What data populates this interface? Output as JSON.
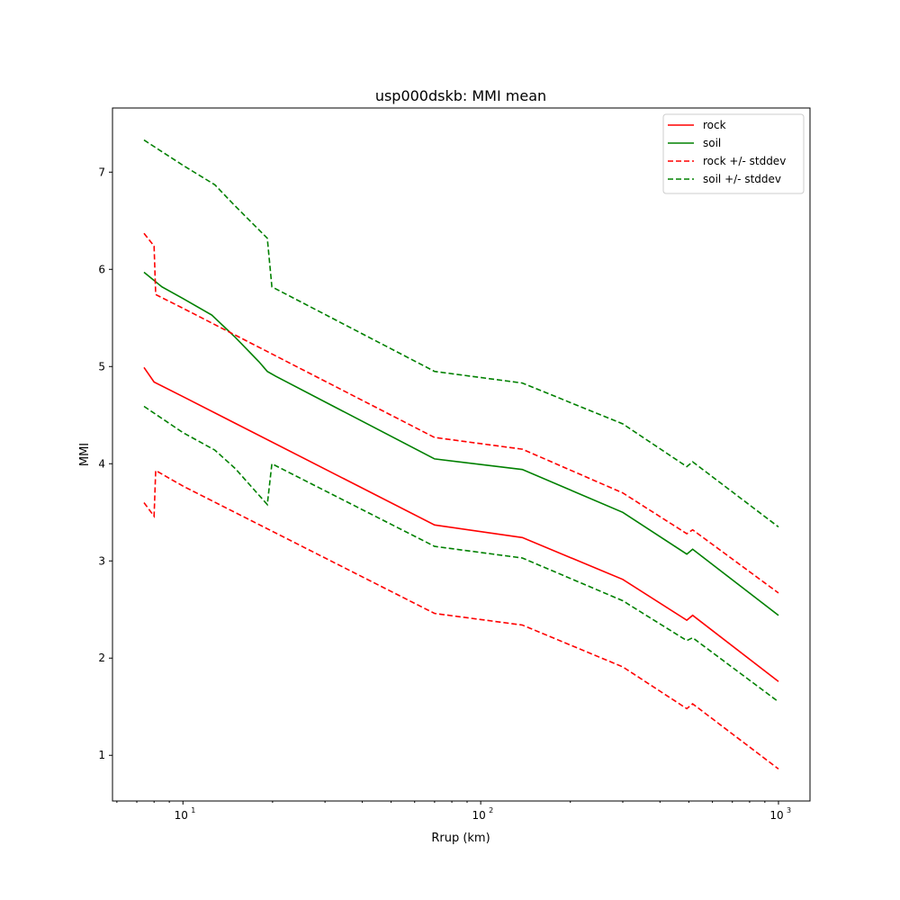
{
  "chart_data": {
    "type": "line",
    "title": "usp000dskb: MMI mean",
    "xlabel": "Rrup (km)",
    "ylabel": "MMI",
    "xscale": "log",
    "xlim": [
      5.8,
      1276
    ],
    "ylim": [
      0.53,
      7.66
    ],
    "xticks": [
      {
        "value": 10,
        "base": "10",
        "exp": "1"
      },
      {
        "value": 100,
        "base": "10",
        "exp": "2"
      },
      {
        "value": 1000,
        "base": "10",
        "exp": "3"
      }
    ],
    "yticks": [
      "1",
      "2",
      "3",
      "4",
      "5",
      "6",
      "7"
    ],
    "legend_position": "top-right",
    "series": [
      {
        "name": "rock",
        "color": "#ff0000",
        "style": "solid",
        "x": [
          7.4,
          8.0,
          10,
          70,
          138,
          300,
          492,
          515,
          1000
        ],
        "y": [
          4.99,
          4.84,
          4.69,
          3.37,
          3.24,
          2.81,
          2.39,
          2.44,
          1.76
        ]
      },
      {
        "name": "soil",
        "color": "#008000",
        "style": "solid",
        "x": [
          7.4,
          8.5,
          10,
          12.5,
          15,
          18,
          19.2,
          20.5,
          70,
          138,
          300,
          492,
          515,
          1000
        ],
        "y": [
          5.97,
          5.82,
          5.7,
          5.53,
          5.3,
          5.05,
          4.95,
          4.9,
          4.05,
          3.94,
          3.5,
          3.07,
          3.12,
          2.44
        ]
      },
      {
        "name": "rock +/- stddev",
        "color": "#ff0000",
        "style": "dashed",
        "x": [
          7.4,
          8.0,
          8.1,
          10,
          70,
          138,
          300,
          492,
          515,
          1000
        ],
        "y": [
          6.37,
          6.24,
          5.74,
          5.6,
          4.27,
          4.15,
          3.7,
          3.28,
          3.32,
          2.67
        ]
      },
      {
        "name": "rock - stddev",
        "color": "#ff0000",
        "style": "dashed",
        "legend": false,
        "x": [
          7.4,
          8.0,
          8.1,
          10,
          70,
          138,
          300,
          492,
          515,
          1000
        ],
        "y": [
          3.6,
          3.46,
          3.93,
          3.77,
          2.46,
          2.34,
          1.91,
          1.48,
          1.53,
          0.86
        ]
      },
      {
        "name": "soil +/- stddev",
        "color": "#008000",
        "style": "dashed",
        "x": [
          7.4,
          10,
          12.8,
          15,
          19.2,
          19.9,
          70,
          138,
          300,
          492,
          515,
          1000
        ],
        "y": [
          7.33,
          7.07,
          6.87,
          6.65,
          6.32,
          5.82,
          4.95,
          4.83,
          4.41,
          3.97,
          4.02,
          3.35
        ]
      },
      {
        "name": "soil - stddev",
        "color": "#008000",
        "style": "dashed",
        "legend": false,
        "x": [
          7.4,
          10,
          12.8,
          15,
          19.2,
          19.9,
          70,
          138,
          300,
          492,
          515,
          1000
        ],
        "y": [
          4.59,
          4.32,
          4.14,
          3.95,
          3.58,
          4.0,
          3.15,
          3.03,
          2.59,
          2.18,
          2.21,
          1.55
        ]
      }
    ]
  }
}
